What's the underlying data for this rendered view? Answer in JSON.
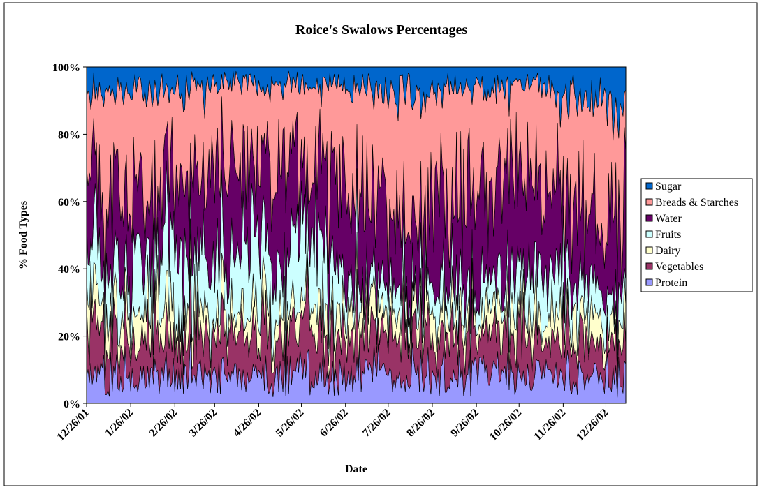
{
  "chart_data": {
    "type": "area",
    "stacking": "percent",
    "title": "Roice's Swalows Percentages",
    "xlabel": "Date",
    "ylabel": "% Food Types",
    "ylim": [
      0,
      100
    ],
    "y_tick_labels": [
      "0%",
      "20%",
      "40%",
      "60%",
      "80%",
      "100%"
    ],
    "x_tick_labels": [
      "12/26/01",
      "1/26/02",
      "2/26/02",
      "3/26/02",
      "4/26/02",
      "5/26/02",
      "6/26/02",
      "7/26/02",
      "8/26/02",
      "9/26/02",
      "10/26/02",
      "11/26/02",
      "12/26/02"
    ],
    "x_range": [
      "2001-12-26",
      "2003-01-09"
    ],
    "grid": false,
    "legend_position": "right",
    "legend_order": [
      "Sugar",
      "Breads & Starches",
      "Water",
      "Fruits",
      "Dairy",
      "Vegetables",
      "Protein"
    ],
    "series": [
      {
        "name": "Protein",
        "color": "#9999ff",
        "approx_share_percent_by_month": [
          8,
          8,
          9,
          8,
          8,
          8,
          9,
          8,
          8,
          9,
          9,
          8,
          8
        ]
      },
      {
        "name": "Vegetables",
        "color": "#993366",
        "approx_share_percent_by_month": [
          12,
          11,
          10,
          11,
          12,
          13,
          12,
          12,
          12,
          12,
          11,
          11,
          10
        ]
      },
      {
        "name": "Dairy",
        "color": "#ffffcc",
        "approx_share_percent_by_month": [
          8,
          7,
          8,
          6,
          7,
          6,
          7,
          6,
          6,
          6,
          7,
          8,
          6
        ]
      },
      {
        "name": "Fruits",
        "color": "#ccffff",
        "approx_share_percent_by_month": [
          12,
          14,
          18,
          22,
          16,
          20,
          8,
          6,
          8,
          8,
          12,
          10,
          8
        ]
      },
      {
        "name": "Water",
        "color": "#660066",
        "approx_share_percent_by_month": [
          22,
          22,
          20,
          26,
          26,
          22,
          28,
          22,
          24,
          25,
          24,
          22,
          22
        ]
      },
      {
        "name": "Breads & Starches",
        "color": "#ff9999",
        "approx_share_percent_by_month": [
          32,
          30,
          28,
          22,
          26,
          26,
          30,
          38,
          36,
          33,
          30,
          32,
          34
        ]
      },
      {
        "name": "Sugar",
        "color": "#0066cc",
        "approx_share_percent_by_month": [
          6,
          8,
          7,
          5,
          5,
          5,
          6,
          8,
          6,
          7,
          7,
          9,
          12
        ]
      }
    ]
  }
}
